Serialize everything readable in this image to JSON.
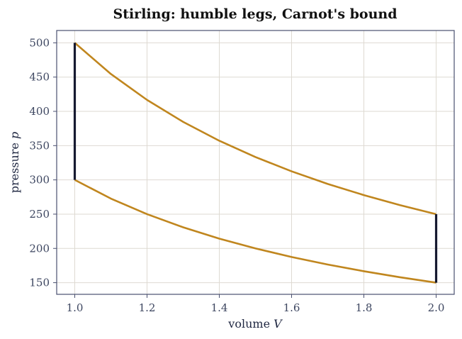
{
  "chart_data": {
    "type": "line",
    "title": "Stirling: humble legs, Carnot's bound",
    "xlabel": "volume",
    "xlabel_symbol": "V",
    "ylabel": "pressure",
    "ylabel_symbol": "p",
    "xlim": [
      0.95,
      2.05
    ],
    "ylim": [
      133,
      518
    ],
    "xticks": [
      1.0,
      1.2,
      1.4,
      1.6,
      1.8,
      2.0
    ],
    "xtick_labels": [
      "1.0",
      "1.2",
      "1.4",
      "1.6",
      "1.8",
      "2.0"
    ],
    "yticks": [
      150,
      200,
      250,
      300,
      350,
      400,
      450,
      500
    ],
    "ytick_labels": [
      "150",
      "200",
      "250",
      "300",
      "350",
      "400",
      "450",
      "500"
    ],
    "grid": true,
    "legend": "none",
    "colors": {
      "isotherm": "#c0861e",
      "isochore": "#161a30"
    },
    "series": [
      {
        "kind": "isotherm",
        "x": [
          1.0,
          1.1,
          1.2,
          1.3,
          1.4,
          1.5,
          1.6,
          1.7,
          1.8,
          1.9,
          2.0
        ],
        "y": [
          500,
          454.5,
          416.7,
          384.6,
          357.1,
          333.3,
          312.5,
          294.1,
          277.8,
          263.2,
          250
        ]
      },
      {
        "kind": "isotherm",
        "x": [
          1.0,
          1.1,
          1.2,
          1.3,
          1.4,
          1.5,
          1.6,
          1.7,
          1.8,
          1.9,
          2.0
        ],
        "y": [
          300,
          272.7,
          250,
          230.8,
          214.3,
          200,
          187.5,
          176.5,
          166.7,
          157.9,
          150
        ]
      },
      {
        "kind": "isochore",
        "x": [
          1.0,
          1.0
        ],
        "y": [
          300,
          500
        ]
      },
      {
        "kind": "isochore",
        "x": [
          2.0,
          2.0
        ],
        "y": [
          150,
          250
        ]
      }
    ]
  }
}
